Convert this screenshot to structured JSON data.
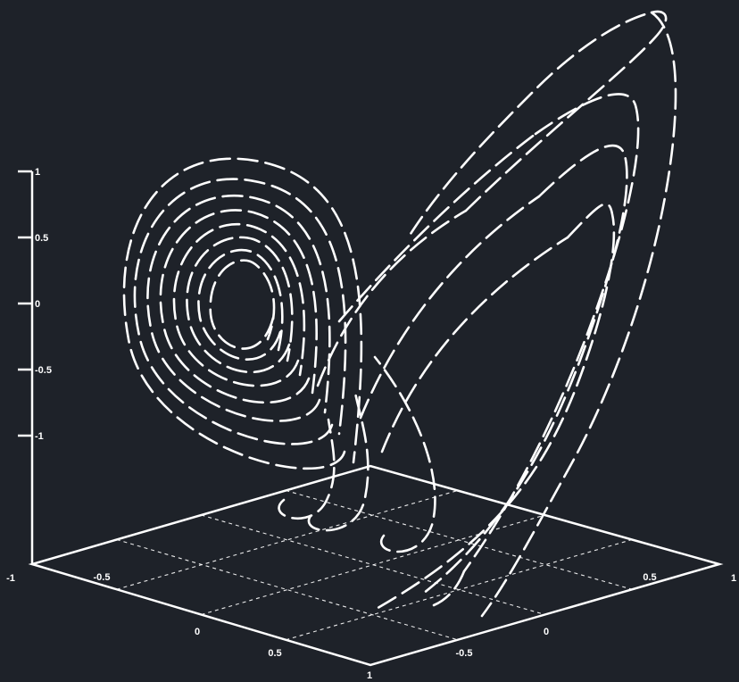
{
  "chart_data": {
    "type": "line",
    "projection": "3d",
    "title": "",
    "xlabel": "",
    "ylabel": "",
    "zlabel": "",
    "colors": {
      "background": "#1e2229",
      "foreground": "#ffffff"
    },
    "grid": true,
    "line_style": "long-dash",
    "xlim": [
      -1,
      1
    ],
    "ylim": [
      -1,
      1
    ],
    "zlim": [
      -1,
      1
    ],
    "z_ticks": [
      "1",
      "0.5",
      "0",
      "-0.5",
      "-1"
    ],
    "x_ticks": [
      "-1",
      "-0.5",
      "0",
      "0.5",
      "1"
    ],
    "y_ticks": [
      "1",
      "0.5",
      "0",
      "-0.5",
      "-1"
    ],
    "series": [
      {
        "shape": "butterfly-attractor",
        "description_free": true,
        "loops_left_wing": 7,
        "loops_right_wing": 3
      }
    ]
  }
}
